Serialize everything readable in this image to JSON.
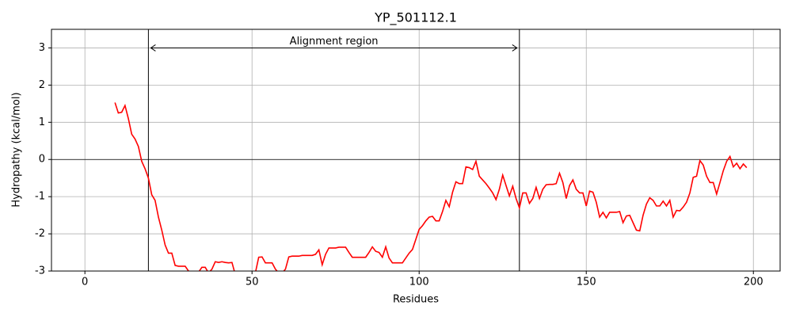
{
  "chart_data": {
    "type": "line",
    "title": "YP_501112.1",
    "xlabel": "Residues",
    "ylabel": "Hydropathy (kcal/mol)",
    "xlim": [
      -10,
      208
    ],
    "ylim": [
      -3,
      3.5
    ],
    "xticks": [
      0,
      50,
      100,
      150,
      200
    ],
    "yticks": [
      -3,
      -2,
      -1,
      0,
      1,
      2,
      3
    ],
    "grid": true,
    "hline": 0,
    "region": {
      "label": "Alignment region",
      "start": 19,
      "end": 130,
      "y": 3
    },
    "x": [
      9,
      10,
      11,
      12,
      13,
      14,
      15,
      16,
      17,
      18,
      19,
      20,
      21,
      22,
      23,
      24,
      25,
      26,
      27,
      28,
      29,
      30,
      31,
      32,
      33,
      34,
      35,
      36,
      37,
      38,
      39,
      40,
      41,
      42,
      43,
      44,
      45,
      46,
      47,
      48,
      49,
      50,
      51,
      52,
      53,
      54,
      55,
      56,
      57,
      58,
      59,
      60,
      61,
      62,
      63,
      64,
      65,
      66,
      67,
      68,
      69,
      70,
      71,
      72,
      73,
      74,
      75,
      76,
      77,
      78,
      79,
      80,
      81,
      82,
      83,
      84,
      85,
      86,
      87,
      88,
      89,
      90,
      91,
      92,
      93,
      94,
      95,
      96,
      97,
      98,
      99,
      100,
      101,
      102,
      103,
      104,
      105,
      106,
      107,
      108,
      109,
      110,
      111,
      112,
      113,
      114,
      115,
      116,
      117,
      118,
      119,
      120,
      121,
      122,
      123,
      124,
      125,
      126,
      127,
      128,
      129,
      130,
      131,
      132,
      133,
      134,
      135,
      136,
      137,
      138,
      139,
      140,
      141,
      142,
      143,
      144,
      145,
      146,
      147,
      148,
      149,
      150,
      151,
      152,
      153,
      154,
      155,
      156,
      157,
      158,
      159,
      160,
      161,
      162,
      163,
      164,
      165,
      166,
      167,
      168,
      169,
      170,
      171,
      172,
      173,
      174,
      175,
      176,
      177,
      178,
      179,
      180,
      181,
      182,
      183,
      184,
      185,
      186,
      187,
      188,
      189,
      190,
      191,
      192,
      193,
      194,
      195,
      196,
      197,
      198
    ],
    "series": [
      {
        "name": "YP_501112.1",
        "color": "#ff0000",
        "values": [
          1.53,
          1.25,
          1.27,
          1.45,
          1.1,
          0.68,
          0.55,
          0.35,
          -0.05,
          -0.25,
          -0.5,
          -0.95,
          -1.1,
          -1.55,
          -1.9,
          -2.3,
          -2.52,
          -2.52,
          -2.85,
          -2.87,
          -2.87,
          -2.87,
          -3.0,
          -3.02,
          -3.03,
          -3.03,
          -2.9,
          -2.9,
          -3.05,
          -2.95,
          -2.75,
          -2.77,
          -2.75,
          -2.77,
          -2.78,
          -2.77,
          -3.1,
          -3.3,
          -3.35,
          -3.35,
          -3.3,
          -3.2,
          -3.05,
          -2.63,
          -2.62,
          -2.78,
          -2.78,
          -2.78,
          -2.95,
          -3.05,
          -3.05,
          -2.95,
          -2.62,
          -2.6,
          -2.6,
          -2.6,
          -2.58,
          -2.58,
          -2.58,
          -2.58,
          -2.55,
          -2.43,
          -2.83,
          -2.55,
          -2.38,
          -2.38,
          -2.38,
          -2.36,
          -2.36,
          -2.36,
          -2.5,
          -2.63,
          -2.63,
          -2.63,
          -2.63,
          -2.63,
          -2.5,
          -2.35,
          -2.47,
          -2.5,
          -2.63,
          -2.35,
          -2.65,
          -2.78,
          -2.78,
          -2.78,
          -2.78,
          -2.65,
          -2.52,
          -2.42,
          -2.15,
          -1.88,
          -1.78,
          -1.65,
          -1.55,
          -1.53,
          -1.65,
          -1.65,
          -1.4,
          -1.1,
          -1.27,
          -0.88,
          -0.6,
          -0.65,
          -0.65,
          -0.2,
          -0.22,
          -0.27,
          -0.05,
          -0.45,
          -0.55,
          -0.65,
          -0.77,
          -0.9,
          -1.08,
          -0.8,
          -0.42,
          -0.7,
          -0.98,
          -0.72,
          -1.05,
          -1.3,
          -0.9,
          -0.9,
          -1.18,
          -1.05,
          -0.75,
          -1.05,
          -0.8,
          -0.68,
          -0.67,
          -0.67,
          -0.65,
          -0.37,
          -0.62,
          -1.05,
          -0.7,
          -0.55,
          -0.8,
          -0.9,
          -0.9,
          -1.25,
          -0.85,
          -0.88,
          -1.15,
          -1.55,
          -1.42,
          -1.57,
          -1.42,
          -1.42,
          -1.42,
          -1.4,
          -1.7,
          -1.52,
          -1.5,
          -1.7,
          -1.9,
          -1.92,
          -1.5,
          -1.2,
          -1.03,
          -1.1,
          -1.25,
          -1.25,
          -1.12,
          -1.25,
          -1.1,
          -1.55,
          -1.37,
          -1.38,
          -1.28,
          -1.15,
          -0.9,
          -0.48,
          -0.45,
          -0.03,
          -0.15,
          -0.45,
          -0.62,
          -0.62,
          -0.93,
          -0.62,
          -0.3,
          -0.05,
          0.08,
          -0.2,
          -0.1,
          -0.25,
          -0.12,
          -0.22
        ]
      }
    ]
  }
}
